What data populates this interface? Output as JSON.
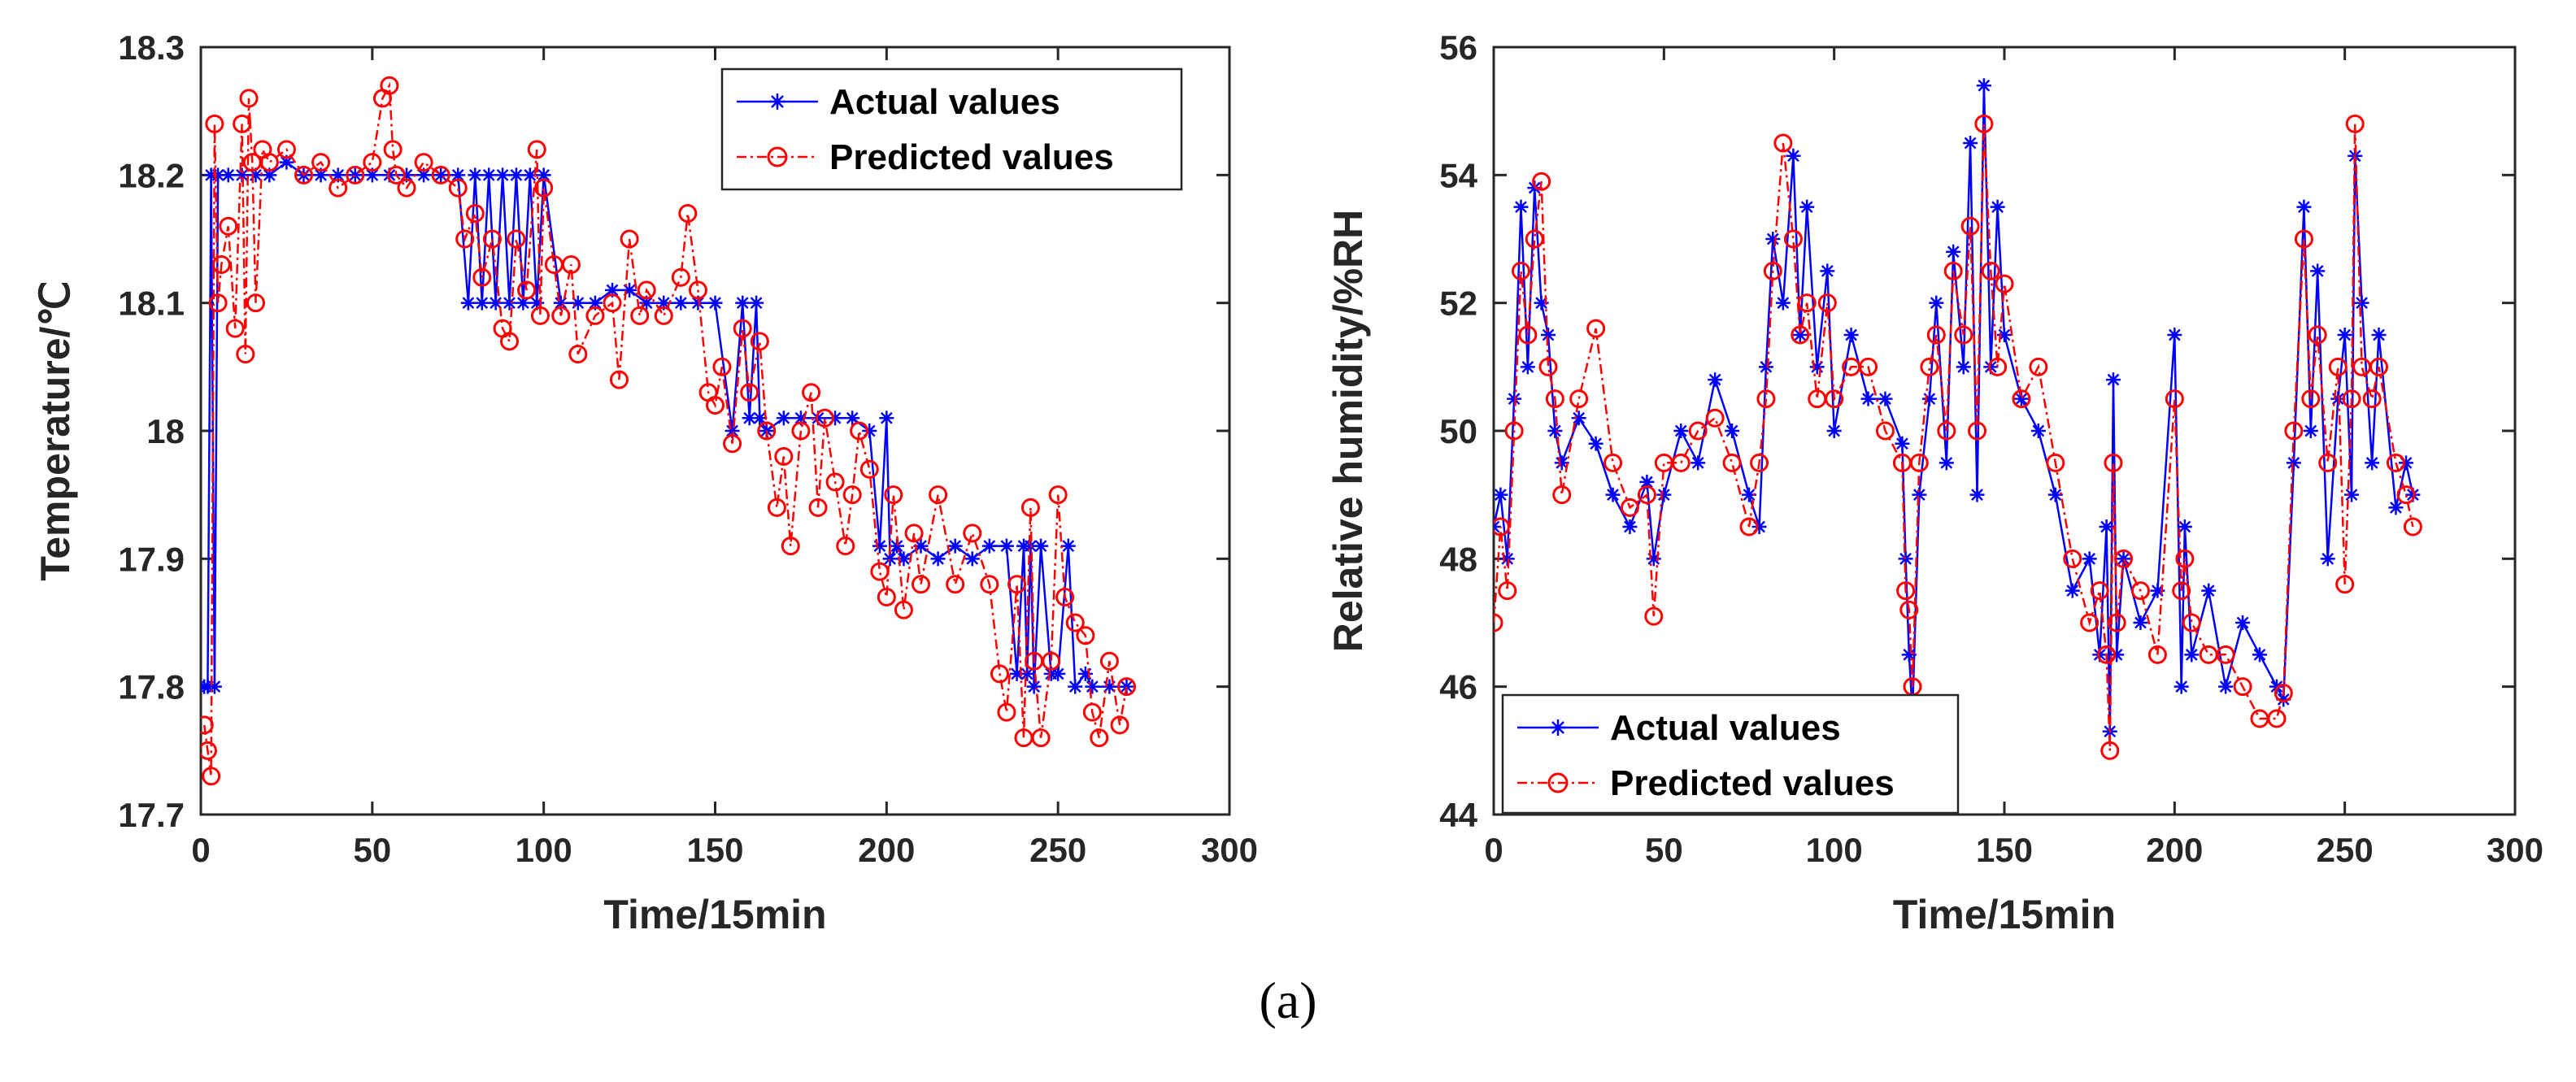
{
  "caption": "(a)",
  "colors": {
    "actual": "#0000ff",
    "predicted": "#ff0000",
    "axis": "#262626"
  },
  "chart_data": [
    {
      "type": "line",
      "xlabel": "Time/15min",
      "ylabel": "Temperature/℃",
      "xlim": [
        0,
        300
      ],
      "ylim": [
        17.7,
        18.3
      ],
      "xticks": [
        0,
        50,
        100,
        150,
        200,
        250,
        300
      ],
      "yticks": [
        17.7,
        17.8,
        17.9,
        18.0,
        18.1,
        18.2,
        18.3
      ],
      "xtick_labels": [
        "0",
        "50",
        "100",
        "150",
        "200",
        "250",
        "300"
      ],
      "ytick_labels": [
        "17.7",
        "17.8",
        "17.9",
        "18",
        "18.1",
        "18.2",
        "18.3"
      ],
      "legend_position": "top-right",
      "legend_labels": [
        "Actual values",
        "Predicted values"
      ],
      "series": [
        {
          "name": "Actual values",
          "marker": "asterisk",
          "x": [
            1,
            2,
            3,
            4,
            5,
            8,
            12,
            16,
            20,
            25,
            30,
            35,
            40,
            45,
            50,
            55,
            60,
            65,
            70,
            75,
            78,
            80,
            82,
            84,
            86,
            88,
            90,
            92,
            94,
            96,
            98,
            100,
            105,
            110,
            115,
            120,
            125,
            130,
            135,
            140,
            145,
            150,
            155,
            158,
            160,
            162,
            163,
            165,
            170,
            175,
            180,
            185,
            190,
            195,
            198,
            200,
            201,
            203,
            205,
            210,
            215,
            220,
            225,
            230,
            235,
            238,
            240,
            241,
            242,
            243,
            245,
            248,
            250,
            253,
            255,
            258,
            260,
            265,
            270
          ],
          "values": [
            17.8,
            17.8,
            18.2,
            17.8,
            18.2,
            18.2,
            18.2,
            18.2,
            18.2,
            18.21,
            18.2,
            18.2,
            18.2,
            18.2,
            18.2,
            18.2,
            18.2,
            18.2,
            18.2,
            18.2,
            18.1,
            18.2,
            18.1,
            18.2,
            18.1,
            18.2,
            18.1,
            18.2,
            18.1,
            18.2,
            18.1,
            18.2,
            18.1,
            18.1,
            18.1,
            18.11,
            18.11,
            18.1,
            18.1,
            18.1,
            18.1,
            18.1,
            18.0,
            18.1,
            18.01,
            18.1,
            18.01,
            18.0,
            18.01,
            18.01,
            18.01,
            18.01,
            18.01,
            18.0,
            17.91,
            18.01,
            17.9,
            17.91,
            17.9,
            17.91,
            17.9,
            17.91,
            17.9,
            17.91,
            17.91,
            17.81,
            17.91,
            17.81,
            17.91,
            17.8,
            17.91,
            17.81,
            17.81,
            17.91,
            17.8,
            17.81,
            17.8,
            17.8,
            17.8
          ]
        },
        {
          "name": "Predicted values",
          "marker": "circle",
          "x": [
            1,
            2,
            3,
            4,
            5,
            6,
            8,
            10,
            12,
            13,
            14,
            15,
            16,
            18,
            20,
            25,
            30,
            35,
            40,
            45,
            50,
            53,
            55,
            56,
            57,
            60,
            65,
            70,
            75,
            77,
            80,
            82,
            85,
            88,
            90,
            92,
            95,
            98,
            99,
            100,
            103,
            105,
            108,
            110,
            115,
            120,
            122,
            125,
            128,
            130,
            135,
            140,
            142,
            145,
            148,
            150,
            152,
            155,
            158,
            160,
            163,
            165,
            168,
            170,
            172,
            175,
            178,
            180,
            182,
            185,
            188,
            190,
            192,
            195,
            198,
            200,
            202,
            205,
            208,
            210,
            215,
            220,
            225,
            230,
            233,
            235,
            238,
            240,
            242,
            243,
            245,
            248,
            250,
            252,
            255,
            258,
            260,
            262,
            265,
            268,
            270
          ],
          "values": [
            17.77,
            17.75,
            17.73,
            18.24,
            18.1,
            18.13,
            18.16,
            18.08,
            18.24,
            18.06,
            18.26,
            18.21,
            18.1,
            18.22,
            18.21,
            18.22,
            18.2,
            18.21,
            18.19,
            18.2,
            18.21,
            18.26,
            18.27,
            18.22,
            18.2,
            18.19,
            18.21,
            18.2,
            18.19,
            18.15,
            18.17,
            18.12,
            18.15,
            18.08,
            18.07,
            18.15,
            18.11,
            18.22,
            18.09,
            18.19,
            18.13,
            18.09,
            18.13,
            18.06,
            18.09,
            18.1,
            18.04,
            18.15,
            18.09,
            18.11,
            18.09,
            18.12,
            18.17,
            18.11,
            18.03,
            18.02,
            18.05,
            17.99,
            18.08,
            18.03,
            18.07,
            18.0,
            17.94,
            17.98,
            17.91,
            18.0,
            18.03,
            17.94,
            18.01,
            17.96,
            17.91,
            17.95,
            18.0,
            17.97,
            17.89,
            17.87,
            17.95,
            17.86,
            17.92,
            17.88,
            17.95,
            17.88,
            17.92,
            17.88,
            17.81,
            17.78,
            17.88,
            17.76,
            17.94,
            17.82,
            17.76,
            17.82,
            17.95,
            17.87,
            17.85,
            17.84,
            17.78,
            17.76,
            17.82,
            17.77,
            17.8
          ]
        }
      ]
    },
    {
      "type": "line",
      "xlabel": "Time/15min",
      "ylabel": "Relative humidity/%RH",
      "xlim": [
        0,
        300
      ],
      "ylim": [
        44,
        56
      ],
      "xticks": [
        0,
        50,
        100,
        150,
        200,
        250,
        300
      ],
      "yticks": [
        44,
        46,
        48,
        50,
        52,
        54,
        56
      ],
      "xtick_labels": [
        "0",
        "50",
        "100",
        "150",
        "200",
        "250",
        "300"
      ],
      "ytick_labels": [
        "44",
        "46",
        "48",
        "50",
        "52",
        "54",
        "56"
      ],
      "legend_position": "bottom-left",
      "legend_labels": [
        "Actual values",
        "Predicted values"
      ],
      "series": [
        {
          "name": "Actual values",
          "marker": "asterisk",
          "x": [
            0,
            2,
            4,
            6,
            8,
            10,
            12,
            14,
            16,
            18,
            20,
            25,
            30,
            35,
            40,
            45,
            47,
            50,
            55,
            60,
            65,
            70,
            75,
            78,
            80,
            82,
            85,
            88,
            90,
            92,
            95,
            98,
            100,
            105,
            110,
            115,
            120,
            121,
            122,
            123,
            125,
            128,
            130,
            133,
            135,
            138,
            140,
            142,
            144,
            146,
            148,
            150,
            155,
            160,
            165,
            170,
            175,
            178,
            180,
            181,
            182,
            183,
            185,
            190,
            195,
            200,
            202,
            203,
            205,
            210,
            215,
            220,
            225,
            230,
            232,
            235,
            238,
            240,
            242,
            245,
            248,
            250,
            252,
            253,
            255,
            258,
            260,
            265,
            268,
            270
          ],
          "values": [
            48.5,
            49.0,
            48.0,
            50.5,
            53.5,
            51.0,
            53.8,
            52.0,
            51.5,
            50.0,
            49.5,
            50.2,
            49.8,
            49.0,
            48.5,
            49.2,
            48.0,
            49.0,
            50.0,
            49.5,
            50.8,
            50.0,
            49.0,
            48.5,
            51.0,
            53.0,
            52.0,
            54.3,
            51.5,
            53.5,
            51.0,
            52.5,
            50.0,
            51.5,
            50.5,
            50.5,
            49.8,
            48.0,
            46.5,
            45.6,
            49.0,
            50.5,
            52.0,
            49.5,
            52.8,
            51.0,
            54.5,
            49.0,
            55.4,
            51.0,
            53.5,
            51.5,
            50.5,
            50.0,
            49.0,
            47.5,
            48.0,
            46.5,
            48.5,
            45.3,
            50.8,
            46.5,
            48.0,
            47.0,
            47.5,
            51.5,
            46.0,
            48.5,
            46.5,
            47.5,
            46.0,
            47.0,
            46.5,
            46.0,
            45.8,
            49.5,
            53.5,
            50.0,
            52.5,
            48.0,
            50.5,
            51.5,
            49.0,
            54.3,
            52.0,
            49.5,
            51.5,
            48.8,
            49.5,
            49.0
          ]
        },
        {
          "name": "Predicted values",
          "marker": "circle",
          "x": [
            0,
            2,
            4,
            6,
            8,
            10,
            12,
            14,
            16,
            18,
            20,
            25,
            30,
            35,
            40,
            45,
            47,
            50,
            55,
            60,
            65,
            70,
            75,
            78,
            80,
            82,
            85,
            88,
            90,
            92,
            95,
            98,
            100,
            105,
            110,
            115,
            120,
            121,
            122,
            123,
            125,
            128,
            130,
            133,
            135,
            138,
            140,
            142,
            144,
            146,
            148,
            150,
            155,
            160,
            165,
            170,
            175,
            178,
            180,
            181,
            182,
            183,
            185,
            190,
            195,
            200,
            202,
            203,
            205,
            210,
            215,
            220,
            225,
            230,
            232,
            235,
            238,
            240,
            242,
            245,
            248,
            250,
            252,
            253,
            255,
            258,
            260,
            265,
            268,
            270
          ],
          "values": [
            47.0,
            48.5,
            47.5,
            50.0,
            52.5,
            51.5,
            53.0,
            53.9,
            51.0,
            50.5,
            49.0,
            50.5,
            51.6,
            49.5,
            48.8,
            49.0,
            47.1,
            49.5,
            49.5,
            50.0,
            50.2,
            49.5,
            48.5,
            49.5,
            50.5,
            52.5,
            54.5,
            53.0,
            51.5,
            52.0,
            50.5,
            52.0,
            50.5,
            51.0,
            51.0,
            50.0,
            49.5,
            47.5,
            47.2,
            46.0,
            49.5,
            51.0,
            51.5,
            50.0,
            52.5,
            51.5,
            53.2,
            50.0,
            54.8,
            52.5,
            51.0,
            52.3,
            50.5,
            51.0,
            49.5,
            48.0,
            47.0,
            47.5,
            46.5,
            45.0,
            49.5,
            47.0,
            48.0,
            47.5,
            46.5,
            50.5,
            47.5,
            48.0,
            47.0,
            46.5,
            46.5,
            46.0,
            45.5,
            45.5,
            45.9,
            50.0,
            53.0,
            50.5,
            51.5,
            49.5,
            51.0,
            47.6,
            50.5,
            54.8,
            51.0,
            50.5,
            51.0,
            49.5,
            49.0,
            48.5
          ]
        }
      ]
    }
  ]
}
